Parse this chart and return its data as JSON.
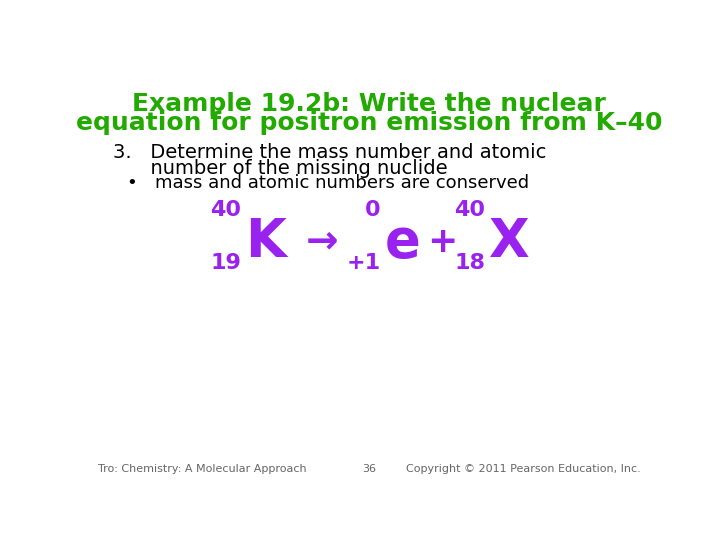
{
  "title_line1": "Example 19.2b: Write the nuclear",
  "title_line2": "equation for positron emission from K–40",
  "title_color": "#22aa00",
  "background_color": "#ffffff",
  "black_text": "#000000",
  "purple": "#9922ee",
  "footer_left": "Tro: Chemistry: A Molecular Approach",
  "footer_center": "36",
  "footer_right": "Copyright © 2011 Pearson Education, Inc.",
  "footer_color": "#666666",
  "title_fontsize": 18,
  "body_fontsize": 14,
  "bullet_fontsize": 13,
  "equation": {
    "K_mass": "40",
    "K_atomic": "19",
    "K_symbol": "K",
    "arrow": "→",
    "e_mass": "0",
    "e_atomic": "+1",
    "e_symbol": "e",
    "plus": "+",
    "X_mass": "40",
    "X_atomic": "18",
    "X_symbol": "X"
  }
}
